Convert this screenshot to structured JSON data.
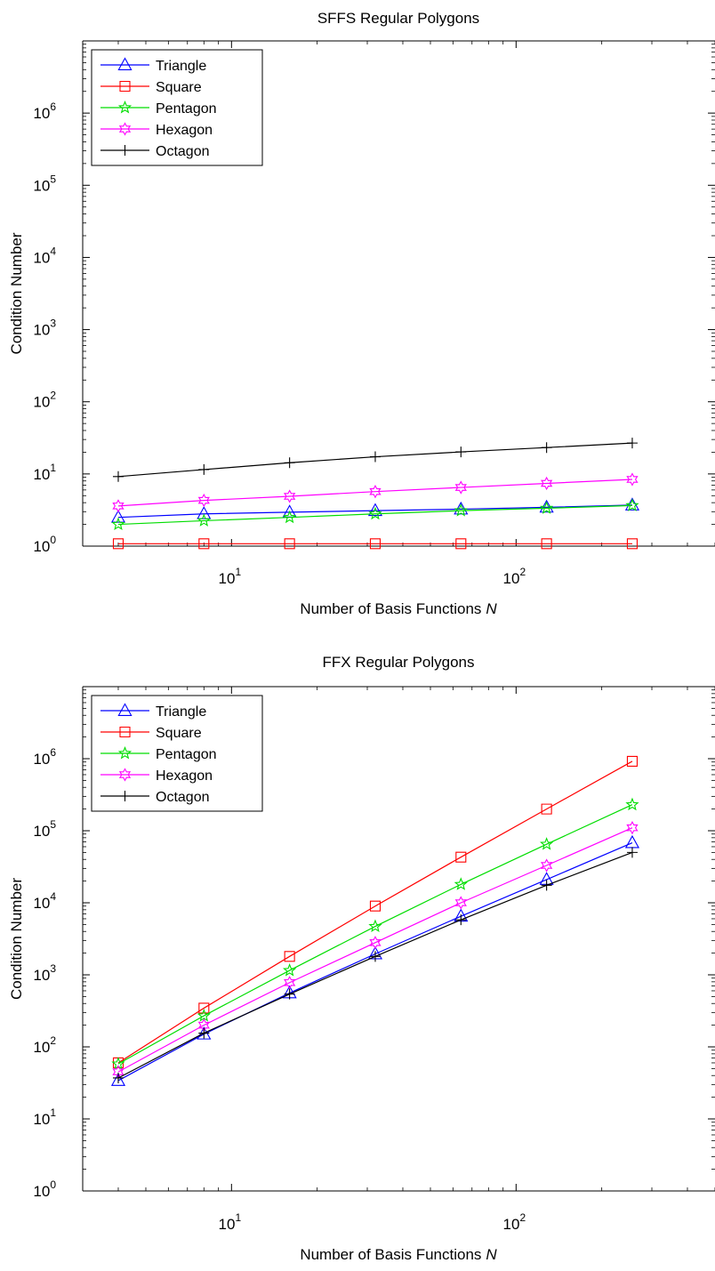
{
  "chart_data": [
    {
      "type": "line",
      "title": "SFFS Regular Polygons",
      "xlabel": "Number of Basis Functions",
      "xlabel_italic": "N",
      "ylabel": "Condition Number",
      "xscale": "log",
      "yscale": "log",
      "xlim": [
        3,
        500
      ],
      "ylim": [
        1,
        10000000
      ],
      "xticks": [
        {
          "value": 10,
          "base": "10",
          "exp": "1"
        },
        {
          "value": 100,
          "base": "10",
          "exp": "2"
        }
      ],
      "yticks": [
        {
          "value": 1,
          "base": "10",
          "exp": "0"
        },
        {
          "value": 10,
          "base": "10",
          "exp": "1"
        },
        {
          "value": 100,
          "base": "10",
          "exp": "2"
        },
        {
          "value": 1000,
          "base": "10",
          "exp": "3"
        },
        {
          "value": 10000,
          "base": "10",
          "exp": "4"
        },
        {
          "value": 100000,
          "base": "10",
          "exp": "5"
        },
        {
          "value": 1000000,
          "base": "10",
          "exp": "6"
        }
      ],
      "grid": false,
      "legend": "top-left",
      "x": [
        4,
        8,
        16,
        32,
        64,
        128,
        256
      ],
      "series": [
        {
          "name": "Triangle",
          "color": "#0000ff",
          "marker": "triangle",
          "values": [
            2.5,
            2.8,
            2.95,
            3.1,
            3.25,
            3.45,
            3.7
          ]
        },
        {
          "name": "Square",
          "color": "#ff0000",
          "marker": "square",
          "values": [
            1.08,
            1.08,
            1.08,
            1.08,
            1.08,
            1.08,
            1.08
          ]
        },
        {
          "name": "Pentagon",
          "color": "#00dd00",
          "marker": "star5",
          "values": [
            2.0,
            2.25,
            2.5,
            2.8,
            3.1,
            3.35,
            3.65
          ]
        },
        {
          "name": "Hexagon",
          "color": "#ff00ff",
          "marker": "star6",
          "values": [
            3.6,
            4.3,
            4.9,
            5.7,
            6.5,
            7.4,
            8.4
          ]
        },
        {
          "name": "Octagon",
          "color": "#000000",
          "marker": "plus",
          "values": [
            9.2,
            11.5,
            14.3,
            17.3,
            20.2,
            23.2,
            26.8
          ]
        }
      ]
    },
    {
      "type": "line",
      "title": "FFX Regular Polygons",
      "xlabel": "Number of Basis Functions",
      "xlabel_italic": "N",
      "ylabel": "Condition Number",
      "xscale": "log",
      "yscale": "log",
      "xlim": [
        3,
        500
      ],
      "ylim": [
        1,
        10000000
      ],
      "xticks": [
        {
          "value": 10,
          "base": "10",
          "exp": "1"
        },
        {
          "value": 100,
          "base": "10",
          "exp": "2"
        }
      ],
      "yticks": [
        {
          "value": 1,
          "base": "10",
          "exp": "0"
        },
        {
          "value": 10,
          "base": "10",
          "exp": "1"
        },
        {
          "value": 100,
          "base": "10",
          "exp": "2"
        },
        {
          "value": 1000,
          "base": "10",
          "exp": "3"
        },
        {
          "value": 10000,
          "base": "10",
          "exp": "4"
        },
        {
          "value": 100000,
          "base": "10",
          "exp": "5"
        },
        {
          "value": 1000000,
          "base": "10",
          "exp": "6"
        }
      ],
      "grid": false,
      "legend": "top-left",
      "x": [
        4,
        8,
        16,
        32,
        64,
        128,
        256
      ],
      "series": [
        {
          "name": "Triangle",
          "color": "#0000ff",
          "marker": "triangle",
          "values": [
            34,
            150,
            560,
            1950,
            6500,
            21000,
            68000
          ]
        },
        {
          "name": "Square",
          "color": "#ff0000",
          "marker": "square",
          "values": [
            60,
            345,
            1800,
            9000,
            43000,
            200000,
            920000
          ]
        },
        {
          "name": "Pentagon",
          "color": "#00dd00",
          "marker": "star5",
          "values": [
            58,
            270,
            1150,
            4700,
            18000,
            65000,
            230000
          ]
        },
        {
          "name": "Hexagon",
          "color": "#ff00ff",
          "marker": "star6",
          "values": [
            45,
            200,
            780,
            2800,
            10000,
            33000,
            110000
          ]
        },
        {
          "name": "Octagon",
          "color": "#000000",
          "marker": "plus",
          "values": [
            37,
            155,
            540,
            1800,
            5800,
            17500,
            50000
          ]
        }
      ]
    }
  ]
}
